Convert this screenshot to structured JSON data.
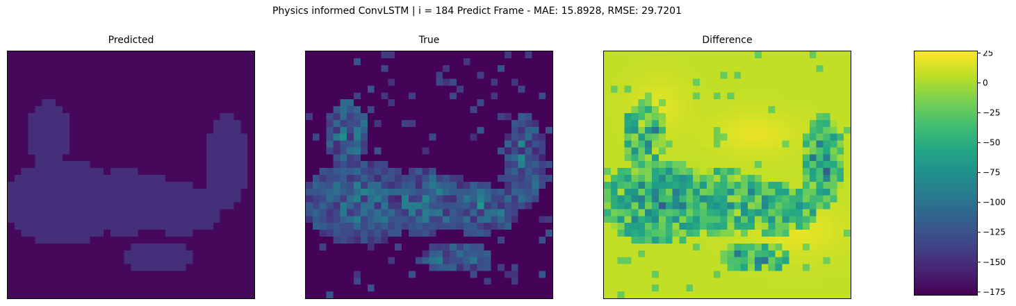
{
  "figure": {
    "title": "Physics informed ConvLSTM | i = 184 Predict Frame - MAE: 15.8928, RMSE: 29.7201"
  },
  "chart_data": [
    {
      "type": "heatmap",
      "title": "Predicted",
      "grid_size": [
        36,
        36
      ],
      "xticks": [],
      "yticks": [],
      "values_note_omitted": true
    },
    {
      "type": "heatmap",
      "title": "True",
      "grid_size": [
        36,
        36
      ],
      "xticks": [],
      "yticks": []
    },
    {
      "type": "heatmap",
      "title": "Difference",
      "grid_size": [
        36,
        36
      ],
      "xticks": [],
      "yticks": []
    }
  ],
  "colorbar": {
    "colormap": "viridis",
    "range": [
      -178,
      27
    ],
    "ticks": [
      25,
      0,
      -25,
      -50,
      -75,
      -100,
      -125,
      -150,
      -175
    ],
    "tick_labels": [
      "25",
      "0",
      "−25",
      "−50",
      "−75",
      "−100",
      "−125",
      "−150",
      "−175"
    ]
  }
}
